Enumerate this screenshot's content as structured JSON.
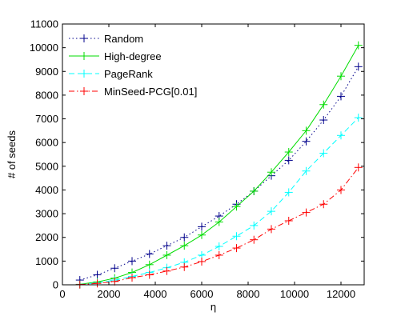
{
  "chart_data": {
    "type": "line",
    "title": "",
    "xlabel": "η",
    "ylabel": "# of seeds",
    "xlim": [
      0,
      13000
    ],
    "ylim": [
      0,
      11000
    ],
    "xticks": [
      "0",
      "2000",
      "4000",
      "6000",
      "8000",
      "10000",
      "12000"
    ],
    "yticks": [
      "0",
      "1000",
      "2000",
      "3000",
      "4000",
      "5000",
      "6000",
      "7000",
      "8000",
      "9000",
      "10000",
      "11000"
    ],
    "grid": false,
    "legend_position": "top-left",
    "x": [
      750,
      1500,
      2250,
      3000,
      3750,
      4500,
      5250,
      6000,
      6750,
      7500,
      8250,
      9000,
      9750,
      10500,
      11250,
      12000,
      12750
    ],
    "series": [
      {
        "name": "Random",
        "color": "#00008b",
        "line_style": "dotted",
        "marker": "plus",
        "values": [
          200,
          420,
          700,
          1000,
          1300,
          1650,
          2000,
          2450,
          2900,
          3400,
          3950,
          4600,
          5250,
          6050,
          6950,
          7950,
          9200
        ]
      },
      {
        "name": "High-degree",
        "color": "#00dd00",
        "line_style": "solid",
        "marker": "plus",
        "values": [
          20,
          120,
          280,
          520,
          850,
          1250,
          1650,
          2100,
          2650,
          3300,
          3950,
          4750,
          5600,
          6500,
          7600,
          8800,
          10100
        ]
      },
      {
        "name": "PageRank",
        "color": "#00ffff",
        "line_style": "dashed",
        "marker": "plus",
        "values": [
          10,
          80,
          200,
          350,
          520,
          720,
          950,
          1250,
          1620,
          2050,
          2500,
          3100,
          3900,
          4800,
          5550,
          6300,
          7050
        ]
      },
      {
        "name": "MinSeed-PCG[0.01]",
        "color": "#ff0000",
        "line_style": "dashdot",
        "marker": "plus",
        "values": [
          10,
          60,
          140,
          300,
          420,
          580,
          750,
          980,
          1250,
          1550,
          1900,
          2350,
          2700,
          3050,
          3400,
          4000,
          4950
        ]
      }
    ]
  }
}
